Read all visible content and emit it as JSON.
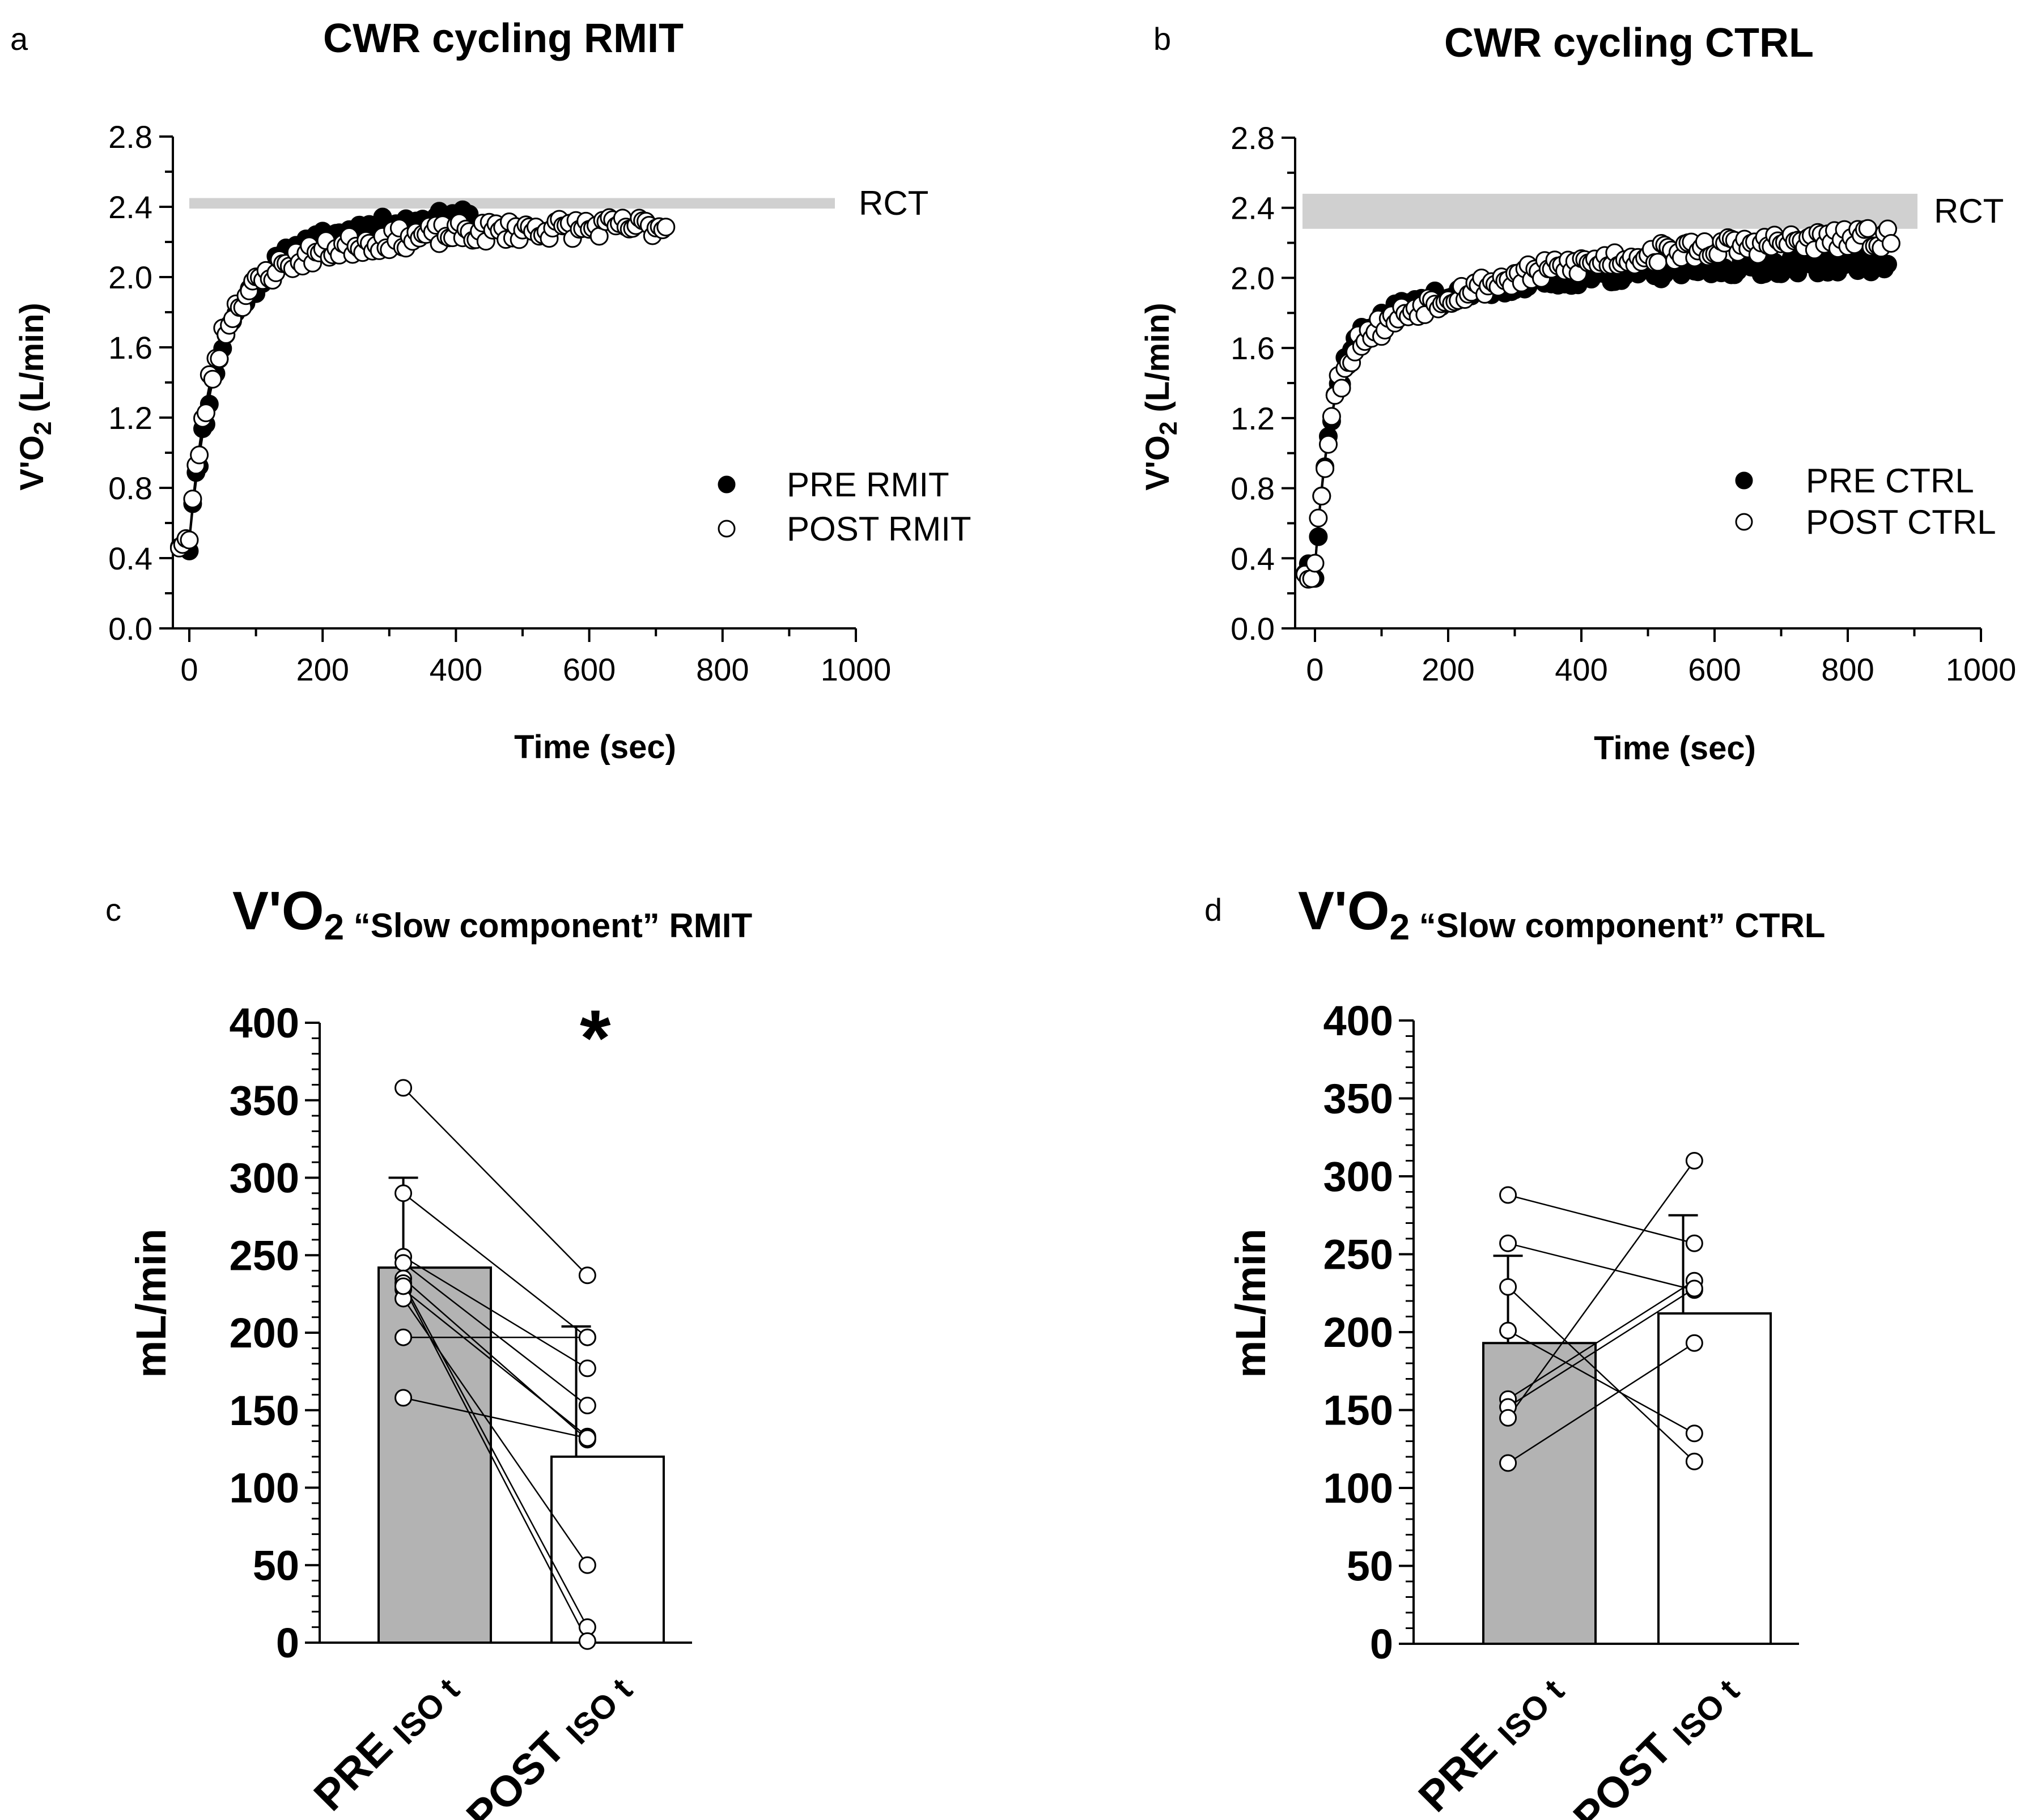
{
  "chart_data": [
    {
      "panel": "a",
      "type": "scatter",
      "title": "CWR cycling RMIT",
      "xlabel": "Time (sec)",
      "ylabel": "V'O",
      "ylabel_sub": "2",
      "ylabel_unit": " (L/min)",
      "xlim": [
        -25,
        1000
      ],
      "ylim": [
        0,
        2.8
      ],
      "xticks": [
        0,
        200,
        400,
        600,
        800,
        1000
      ],
      "yticks": [
        0.0,
        0.4,
        0.8,
        1.2,
        1.6,
        2.0,
        2.4,
        2.8
      ],
      "ytick_labels": [
        "0.0",
        "0.4",
        "0.8",
        "1.2",
        "1.6",
        "2.0",
        "2.4",
        "2.8"
      ],
      "xtick_labels": [
        "0",
        "200",
        "400",
        "600",
        "800",
        "1000"
      ],
      "rct": {
        "label": "RCT",
        "ymin": 2.39,
        "ymax": 2.45
      },
      "legend": [
        "PRE RMIT",
        "POST RMIT"
      ],
      "series": [
        {
          "name": "PRE RMIT",
          "marker": "filled",
          "x_end": 420,
          "tau": 42,
          "baseline": 0.5,
          "plateau": 2.1,
          "slow_gain": 0.27,
          "slow_tau": 150,
          "noise": 0.05,
          "seed": 11
        },
        {
          "name": "POST RMIT",
          "marker": "open",
          "x_end": 715,
          "tau": 36,
          "baseline": 0.5,
          "plateau": 2.05,
          "slow_gain": 0.25,
          "slow_tau": 190,
          "noise": 0.06,
          "seed": 23
        }
      ]
    },
    {
      "panel": "b",
      "type": "scatter",
      "title": "CWR cycling CTRL",
      "xlabel": "Time (sec)",
      "ylabel": "V'O",
      "ylabel_sub": "2",
      "ylabel_unit": " (L/min)",
      "xlim": [
        -25,
        1000
      ],
      "ylim": [
        0,
        2.8
      ],
      "xticks": [
        0,
        200,
        400,
        600,
        800,
        1000
      ],
      "yticks": [
        0.0,
        0.4,
        0.8,
        1.2,
        1.6,
        2.0,
        2.4,
        2.8
      ],
      "ytick_labels": [
        "0.0",
        "0.4",
        "0.8",
        "1.2",
        "1.6",
        "2.0",
        "2.4",
        "2.8"
      ],
      "xtick_labels": [
        "0",
        "200",
        "400",
        "600",
        "800",
        "1000"
      ],
      "rct": {
        "label": "RCT",
        "ymin": 2.28,
        "ymax": 2.48
      },
      "legend": [
        "PRE CTRL",
        "POST CTRL"
      ],
      "series": [
        {
          "name": "PRE CTRL",
          "marker": "filled",
          "x_end": 860,
          "tau": 28,
          "baseline": 0.35,
          "plateau": 1.8,
          "slow_gain": 0.3,
          "slow_tau": 260,
          "noise": 0.05,
          "seed": 37
        },
        {
          "name": "POST CTRL",
          "marker": "open",
          "x_end": 865,
          "tau": 26,
          "baseline": 0.35,
          "plateau": 1.75,
          "slow_gain": 0.52,
          "slow_tau": 300,
          "noise": 0.06,
          "seed": 53
        }
      ]
    },
    {
      "panel": "c",
      "type": "bar",
      "title_main": "V'O",
      "title_sub": "2",
      "title_rest": " “Slow component” RMIT",
      "ylabel": "mL/min",
      "ylim": [
        0,
        400
      ],
      "yticks": [
        0,
        50,
        100,
        150,
        200,
        250,
        300,
        350,
        400
      ],
      "ytick_labels": [
        "0",
        "50",
        "100",
        "150",
        "200",
        "250",
        "300",
        "350",
        "400"
      ],
      "categories": [
        "PRE",
        "POST"
      ],
      "category_subs": [
        "ISO t",
        "ISO t"
      ],
      "values": [
        242,
        120
      ],
      "errors": [
        58,
        84
      ],
      "bar_colors": [
        "#b3b3b3",
        "#ffffff"
      ],
      "significance": "*",
      "pairs": [
        [
          358,
          237
        ],
        [
          290,
          197
        ],
        [
          249,
          177
        ],
        [
          245,
          153
        ],
        [
          235,
          131
        ],
        [
          228,
          133
        ],
        [
          222,
          50
        ],
        [
          197,
          197
        ],
        [
          158,
          132
        ],
        [
          232,
          10
        ],
        [
          230,
          1
        ]
      ]
    },
    {
      "panel": "d",
      "type": "bar",
      "title_main": "V'O",
      "title_sub": "2",
      "title_rest": " “Slow component” CTRL",
      "ylabel": "mL/min",
      "ylim": [
        0,
        400
      ],
      "yticks": [
        0,
        50,
        100,
        150,
        200,
        250,
        300,
        350,
        400
      ],
      "ytick_labels": [
        "0",
        "50",
        "100",
        "150",
        "200",
        "250",
        "300",
        "350",
        "400"
      ],
      "categories": [
        "PRE",
        "POST"
      ],
      "category_subs": [
        "ISO t",
        "ISO t"
      ],
      "values": [
        193,
        212
      ],
      "errors": [
        56,
        63
      ],
      "bar_colors": [
        "#b3b3b3",
        "#ffffff"
      ],
      "significance": "",
      "pairs": [
        [
          288,
          257
        ],
        [
          257,
          227
        ],
        [
          229,
          117
        ],
        [
          201,
          135
        ],
        [
          157,
          233
        ],
        [
          152,
          228
        ],
        [
          145,
          310
        ],
        [
          116,
          193
        ]
      ]
    }
  ]
}
